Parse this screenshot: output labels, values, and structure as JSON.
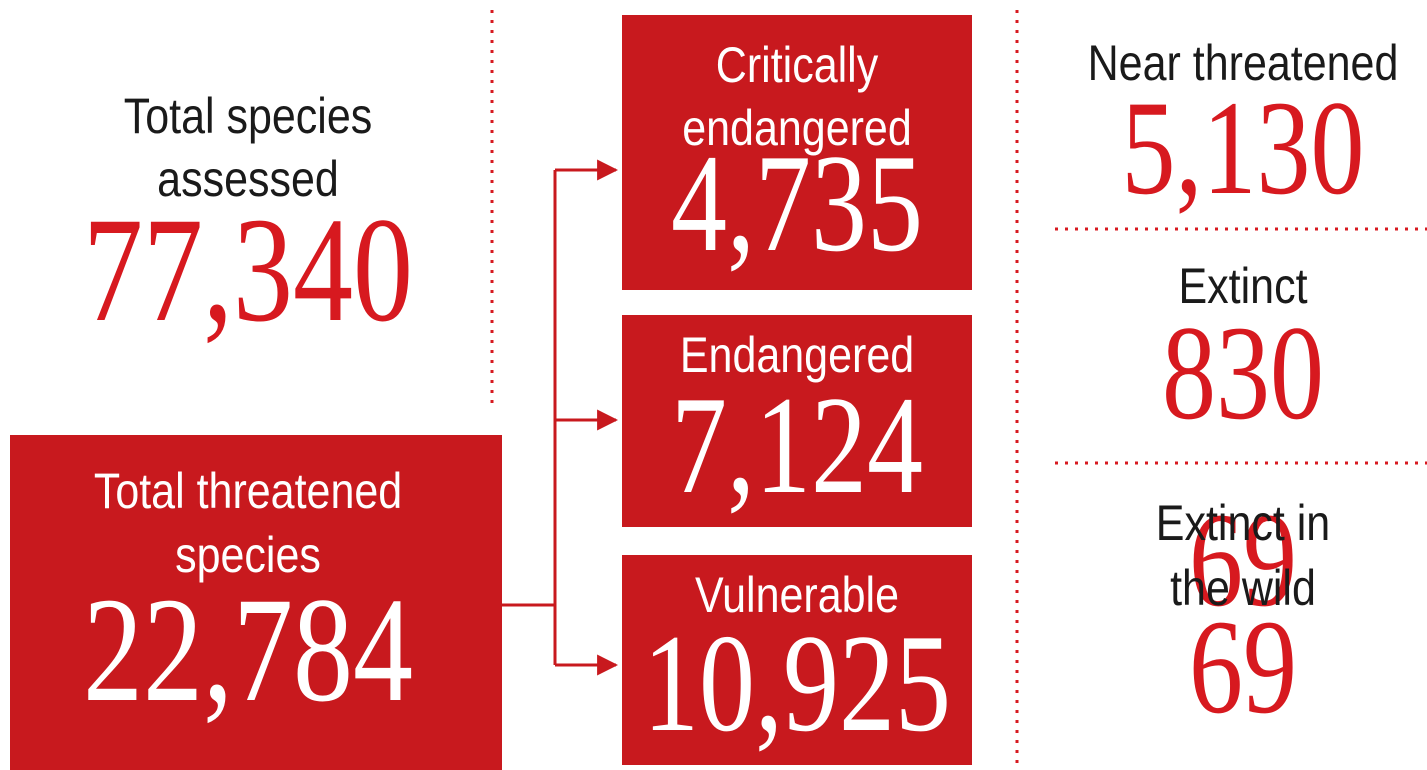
{
  "total_assessed": {
    "label": [
      "Total species",
      "assessed"
    ],
    "value": "77,340"
  },
  "total_threatened": {
    "label": [
      "Total threatened",
      "species"
    ],
    "value": "22,784"
  },
  "threatened_categories": [
    {
      "label": [
        "Critically",
        "endangered"
      ],
      "value": "4,735"
    },
    {
      "label": [
        "Endangered"
      ],
      "value": "7,124"
    },
    {
      "label": [
        "Vulnerable"
      ],
      "value": "10,925"
    }
  ],
  "other_categories": [
    {
      "label": [
        "Near threatened"
      ],
      "value": "5,130"
    },
    {
      "label": [
        "Extinct"
      ],
      "value": "830"
    },
    {
      "label": [
        "Extinct in",
        "the wild"
      ],
      "value": "69"
    }
  ]
}
